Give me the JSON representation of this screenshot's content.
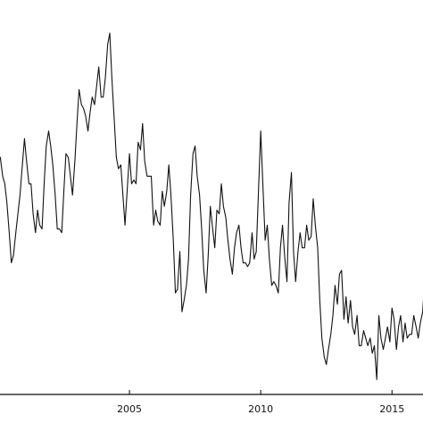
{
  "chart_data": {
    "type": "line",
    "title": "",
    "xlabel": "",
    "ylabel": "",
    "xlim": [
      2000.0,
      2016.25
    ],
    "ylim": [
      0,
      100
    ],
    "grid": false,
    "x_ticks": [
      {
        "value": 2005,
        "label": "2005"
      },
      {
        "value": 2010,
        "label": "2010"
      },
      {
        "value": 2015,
        "label": "2015"
      }
    ],
    "series": [
      {
        "values": [
          [
            2000.0,
            62.0
          ],
          [
            2000.08,
            62.0
          ],
          [
            2000.17,
            57.0
          ],
          [
            2000.25,
            55.0
          ],
          [
            2000.33,
            50.0
          ],
          [
            2000.42,
            42.0
          ],
          [
            2000.5,
            34.0
          ],
          [
            2000.58,
            36.0
          ],
          [
            2000.67,
            42.0
          ],
          [
            2000.75,
            47.0
          ],
          [
            2000.83,
            52.0
          ],
          [
            2000.92,
            60.0
          ],
          [
            2001.0,
            67.0
          ],
          [
            2001.08,
            61.0
          ],
          [
            2001.17,
            55.0
          ],
          [
            2001.25,
            55.0
          ],
          [
            2001.33,
            47.0
          ],
          [
            2001.42,
            42.0
          ],
          [
            2001.5,
            48.0
          ],
          [
            2001.58,
            44.0
          ],
          [
            2001.67,
            43.0
          ],
          [
            2001.75,
            55.0
          ],
          [
            2001.83,
            65.0
          ],
          [
            2001.92,
            69.0
          ],
          [
            2002.0,
            65.0
          ],
          [
            2002.08,
            60.0
          ],
          [
            2002.17,
            52.0
          ],
          [
            2002.25,
            43.0
          ],
          [
            2002.33,
            43.0
          ],
          [
            2002.42,
            42.0
          ],
          [
            2002.5,
            53.0
          ],
          [
            2002.58,
            63.0
          ],
          [
            2002.67,
            62.0
          ],
          [
            2002.75,
            57.0
          ],
          [
            2002.83,
            52.0
          ],
          [
            2002.92,
            61.0
          ],
          [
            2003.0,
            71.0
          ],
          [
            2003.08,
            80.0
          ],
          [
            2003.17,
            76.0
          ],
          [
            2003.25,
            75.0
          ],
          [
            2003.33,
            73.0
          ],
          [
            2003.42,
            69.0
          ],
          [
            2003.5,
            74.0
          ],
          [
            2003.58,
            78.0
          ],
          [
            2003.67,
            76.0
          ],
          [
            2003.75,
            81.0
          ],
          [
            2003.83,
            86.0
          ],
          [
            2003.92,
            78.0
          ],
          [
            2004.0,
            78.0
          ],
          [
            2004.08,
            83.0
          ],
          [
            2004.17,
            92.0
          ],
          [
            2004.25,
            95.0
          ],
          [
            2004.33,
            83.0
          ],
          [
            2004.42,
            72.0
          ],
          [
            2004.5,
            62.0
          ],
          [
            2004.58,
            59.0
          ],
          [
            2004.67,
            60.0
          ],
          [
            2004.75,
            52.0
          ],
          [
            2004.83,
            44.0
          ],
          [
            2004.92,
            54.0
          ],
          [
            2005.0,
            63.0
          ],
          [
            2005.08,
            55.0
          ],
          [
            2005.17,
            56.0
          ],
          [
            2005.25,
            55.0
          ],
          [
            2005.33,
            66.0
          ],
          [
            2005.42,
            64.0
          ],
          [
            2005.5,
            71.0
          ],
          [
            2005.58,
            61.0
          ],
          [
            2005.67,
            57.0
          ],
          [
            2005.75,
            57.0
          ],
          [
            2005.83,
            57.0
          ],
          [
            2005.92,
            44.0
          ],
          [
            2006.0,
            48.0
          ],
          [
            2006.08,
            45.0
          ],
          [
            2006.17,
            44.0
          ],
          [
            2006.25,
            53.0
          ],
          [
            2006.33,
            49.0
          ],
          [
            2006.42,
            53.0
          ],
          [
            2006.5,
            60.0
          ],
          [
            2006.58,
            52.0
          ],
          [
            2006.67,
            40.0
          ],
          [
            2006.75,
            26.0
          ],
          [
            2006.83,
            27.0
          ],
          [
            2006.92,
            37.0
          ],
          [
            2007.0,
            21.0
          ],
          [
            2007.08,
            24.0
          ],
          [
            2007.17,
            28.0
          ],
          [
            2007.25,
            35.0
          ],
          [
            2007.33,
            52.0
          ],
          [
            2007.42,
            63.0
          ],
          [
            2007.5,
            65.0
          ],
          [
            2007.58,
            57.0
          ],
          [
            2007.67,
            52.0
          ],
          [
            2007.75,
            43.0
          ],
          [
            2007.83,
            32.0
          ],
          [
            2007.92,
            26.0
          ],
          [
            2008.0,
            36.0
          ],
          [
            2008.08,
            49.0
          ],
          [
            2008.17,
            43.0
          ],
          [
            2008.25,
            38.0
          ],
          [
            2008.33,
            48.0
          ],
          [
            2008.42,
            47.0
          ],
          [
            2008.5,
            55.0
          ],
          [
            2008.58,
            49.0
          ],
          [
            2008.67,
            46.0
          ],
          [
            2008.75,
            40.0
          ],
          [
            2008.83,
            35.0
          ],
          [
            2008.92,
            31.0
          ],
          [
            2009.0,
            38.0
          ],
          [
            2009.08,
            42.0
          ],
          [
            2009.17,
            44.0
          ],
          [
            2009.25,
            38.0
          ],
          [
            2009.33,
            34.0
          ],
          [
            2009.42,
            34.0
          ],
          [
            2009.5,
            33.0
          ],
          [
            2009.58,
            34.0
          ],
          [
            2009.67,
            42.0
          ],
          [
            2009.75,
            35.0
          ],
          [
            2009.83,
            37.0
          ],
          [
            2009.92,
            54.0
          ],
          [
            2010.0,
            69.0
          ],
          [
            2010.08,
            55.0
          ],
          [
            2010.17,
            40.0
          ],
          [
            2010.25,
            44.0
          ],
          [
            2010.33,
            35.0
          ],
          [
            2010.42,
            28.0
          ],
          [
            2010.5,
            29.0
          ],
          [
            2010.58,
            28.0
          ],
          [
            2010.67,
            26.0
          ],
          [
            2010.75,
            38.0
          ],
          [
            2010.83,
            44.0
          ],
          [
            2010.92,
            35.0
          ],
          [
            2011.0,
            29.0
          ],
          [
            2011.08,
            50.0
          ],
          [
            2011.17,
            58.0
          ],
          [
            2011.25,
            37.0
          ],
          [
            2011.33,
            29.0
          ],
          [
            2011.42,
            37.0
          ],
          [
            2011.5,
            42.0
          ],
          [
            2011.58,
            38.0
          ],
          [
            2011.67,
            38.0
          ],
          [
            2011.75,
            44.0
          ],
          [
            2011.83,
            40.0
          ],
          [
            2011.92,
            41.0
          ],
          [
            2012.0,
            51.0
          ],
          [
            2012.08,
            44.0
          ],
          [
            2012.17,
            38.0
          ],
          [
            2012.25,
            24.0
          ],
          [
            2012.33,
            14.0
          ],
          [
            2012.42,
            9.0
          ],
          [
            2012.5,
            7.0
          ],
          [
            2012.58,
            11.0
          ],
          [
            2012.67,
            15.0
          ],
          [
            2012.75,
            20.0
          ],
          [
            2012.83,
            28.0
          ],
          [
            2012.92,
            23.0
          ],
          [
            2013.0,
            31.0
          ],
          [
            2013.08,
            32.0
          ],
          [
            2013.17,
            19.0
          ],
          [
            2013.25,
            25.0
          ],
          [
            2013.33,
            18.0
          ],
          [
            2013.42,
            24.0
          ],
          [
            2013.5,
            17.0
          ],
          [
            2013.58,
            15.0
          ],
          [
            2013.67,
            20.0
          ],
          [
            2013.75,
            12.0
          ],
          [
            2013.83,
            12.0
          ],
          [
            2013.92,
            16.0
          ],
          [
            2014.0,
            14.0
          ],
          [
            2014.08,
            12.0
          ],
          [
            2014.17,
            14.0
          ],
          [
            2014.25,
            10.0
          ],
          [
            2014.33,
            12.0
          ],
          [
            2014.42,
            3.0
          ],
          [
            2014.5,
            20.0
          ],
          [
            2014.58,
            14.0
          ],
          [
            2014.67,
            11.0
          ],
          [
            2014.75,
            14.0
          ],
          [
            2014.83,
            17.0
          ],
          [
            2014.92,
            13.0
          ],
          [
            2015.0,
            22.0
          ],
          [
            2015.08,
            19.0
          ],
          [
            2015.17,
            11.0
          ],
          [
            2015.25,
            17.0
          ],
          [
            2015.33,
            20.0
          ],
          [
            2015.42,
            13.0
          ],
          [
            2015.5,
            18.0
          ],
          [
            2015.58,
            14.0
          ],
          [
            2015.67,
            15.0
          ],
          [
            2015.75,
            15.0
          ],
          [
            2015.83,
            20.0
          ],
          [
            2015.92,
            17.0
          ],
          [
            2016.0,
            14.0
          ],
          [
            2016.08,
            18.0
          ],
          [
            2016.17,
            21.0
          ],
          [
            2016.25,
            30.0
          ]
        ]
      }
    ]
  }
}
